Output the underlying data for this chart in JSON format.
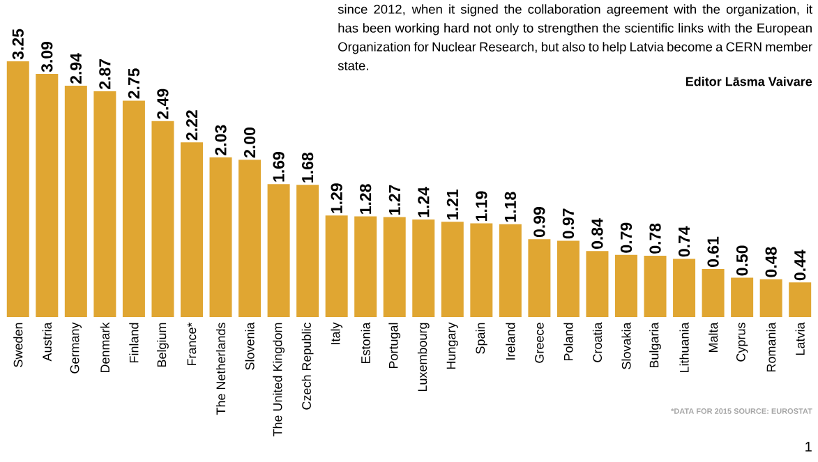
{
  "chart_data": {
    "type": "bar",
    "categories": [
      "Sweden",
      "Austria",
      "Germany",
      "Denmark",
      "Finland",
      "Belgium",
      "France*",
      "The Netherlands",
      "Slovenia",
      "The United Kingdom",
      "Czech Republic",
      "Italy",
      "Estonia",
      "Portugal",
      "Luxembourg",
      "Hungary",
      "Spain",
      "Ireland",
      "Greece",
      "Poland",
      "Croatia",
      "Slovakia",
      "Bulgaria",
      "Lithuania",
      "Malta",
      "Cyprus",
      "Romania",
      "Latvia"
    ],
    "values": [
      3.25,
      3.09,
      2.94,
      2.87,
      2.75,
      2.49,
      2.22,
      2.03,
      2.0,
      1.69,
      1.68,
      1.29,
      1.28,
      1.27,
      1.24,
      1.21,
      1.19,
      1.18,
      0.99,
      0.97,
      0.84,
      0.79,
      0.78,
      0.74,
      0.61,
      0.5,
      0.48,
      0.44
    ],
    "value_labels": [
      "3.25",
      "3.09",
      "2.94",
      "2.87",
      "2.75",
      "2.49",
      "2.22",
      "2.03",
      "2.00",
      "1.69",
      "1.68",
      "1.29",
      "1.28",
      "1.27",
      "1.24",
      "1.21",
      "1.19",
      "1.18",
      "0.99",
      "0.97",
      "0.84",
      "0.79",
      "0.78",
      "0.74",
      "0.61",
      "0.50",
      "0.48",
      "0.44"
    ],
    "color": "#e0a632",
    "annotations": [
      "since 2012, when it signed the collaboration agreement with the organization, it has been working hard not only to strengthen the scientific links with the European Organization for Nuclear Research, but also to help Latvia become a CERN member state.",
      "Editor Lāsma Vaivare",
      "*DATA FOR 2015 SOURCE: EUROSTAT",
      "1"
    ]
  }
}
